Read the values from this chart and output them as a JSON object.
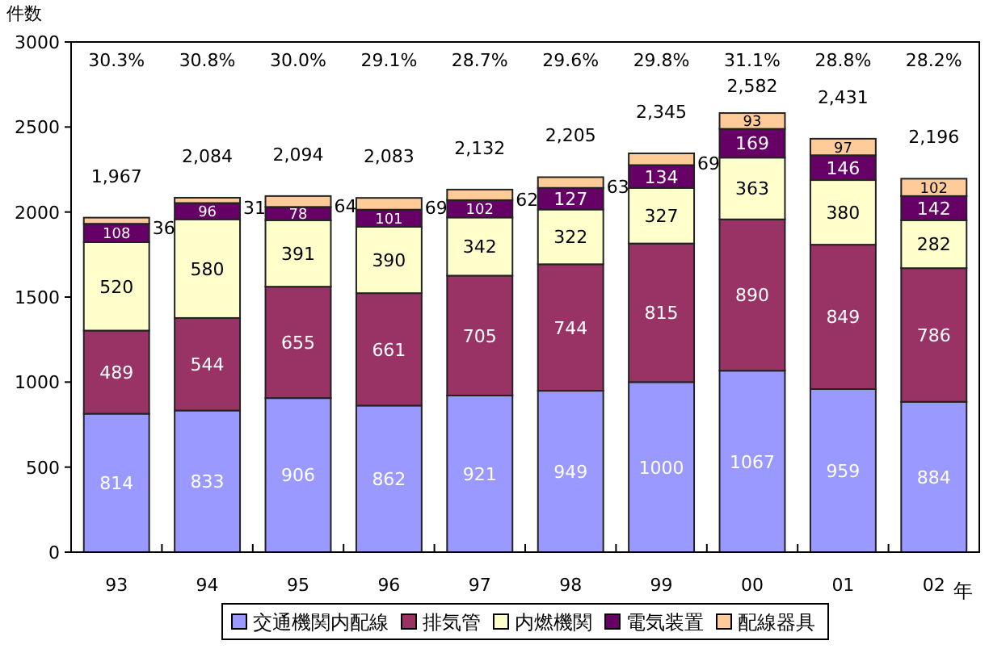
{
  "chart_data": {
    "type": "bar",
    "stacked": true,
    "ylabel": "件数",
    "xlabel": "年",
    "categories": [
      "93",
      "94",
      "95",
      "96",
      "97",
      "98",
      "99",
      "00",
      "01",
      "02"
    ],
    "series": [
      {
        "name": "交通機関内配線",
        "color": "#9999ff",
        "values": [
          814,
          833,
          906,
          862,
          921,
          949,
          1000,
          1067,
          959,
          884
        ]
      },
      {
        "name": "排気管",
        "color": "#993366",
        "values": [
          489,
          544,
          655,
          661,
          705,
          744,
          815,
          890,
          849,
          786
        ]
      },
      {
        "name": "内燃機関",
        "color": "#ffffcc",
        "values": [
          520,
          580,
          391,
          390,
          342,
          322,
          327,
          363,
          380,
          282
        ]
      },
      {
        "name": "電気装置",
        "color": "#660066",
        "values": [
          108,
          96,
          78,
          101,
          102,
          127,
          134,
          169,
          146,
          142
        ]
      },
      {
        "name": "配線器具",
        "color": "#ffcc99",
        "values": [
          36,
          31,
          64,
          69,
          62,
          63,
          69,
          93,
          97,
          102
        ]
      }
    ],
    "ylim": [
      0,
      3000
    ],
    "yticks": [
      0,
      500,
      1000,
      1500,
      2000,
      2500,
      3000
    ],
    "data_labels": true,
    "totals": [
      "1,967",
      "2,084",
      "2,094",
      "2,083",
      "2,132",
      "2,205",
      "2,345",
      "2,582",
      "2,431",
      "2,196"
    ],
    "annotations": [
      "30.3%",
      "30.8%",
      "30.0%",
      "29.1%",
      "28.7%",
      "29.6%",
      "29.8%",
      "31.1%",
      "28.8%",
      "28.2%"
    ],
    "legend": "bottom",
    "grid": false
  }
}
